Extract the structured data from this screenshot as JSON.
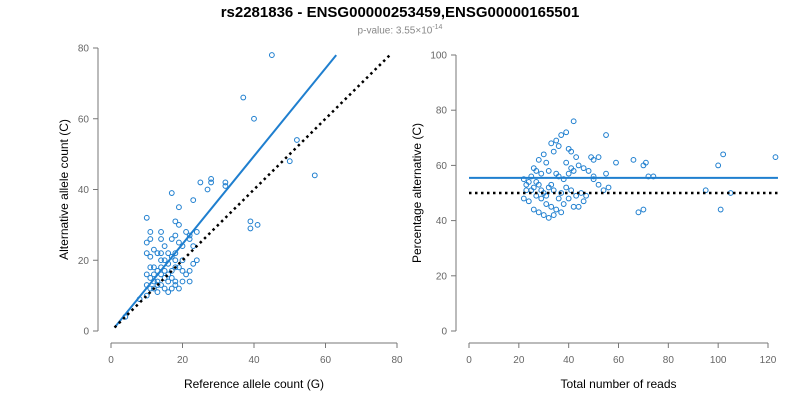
{
  "title": "rs2281836 - ENSG00000253459,ENSG00000165501",
  "subtitle": {
    "prefix": "p-value: 3.55×10",
    "exponent": "-14"
  },
  "colors": {
    "points": "#1f7fcf",
    "fit": "#1f7fcf",
    "reference": "#000000"
  },
  "chart_data": [
    {
      "type": "scatter",
      "xlabel": "Reference allele count (G)",
      "ylabel": "Alternative allele count (C)",
      "xlim": [
        0,
        80
      ],
      "ylim": [
        0,
        80
      ],
      "xticks": [
        0,
        20,
        40,
        60,
        80
      ],
      "yticks": [
        0,
        20,
        40,
        60,
        80
      ],
      "lines": [
        {
          "name": "fit",
          "style": "solid",
          "x": [
            1,
            63
          ],
          "y": [
            1,
            78
          ]
        },
        {
          "name": "y = x",
          "style": "dotted",
          "x": [
            1,
            78
          ],
          "y": [
            1,
            78
          ]
        }
      ],
      "points": [
        [
          45,
          78
        ],
        [
          37,
          66
        ],
        [
          40,
          60
        ],
        [
          52,
          54
        ],
        [
          57,
          44
        ],
        [
          50,
          48
        ],
        [
          41,
          30
        ],
        [
          39,
          29
        ],
        [
          39,
          31
        ],
        [
          32,
          42
        ],
        [
          32,
          41
        ],
        [
          28,
          43
        ],
        [
          28,
          42
        ],
        [
          27,
          40
        ],
        [
          25,
          42
        ],
        [
          23,
          37
        ],
        [
          17,
          39
        ],
        [
          10,
          32
        ],
        [
          11,
          28
        ],
        [
          10,
          25
        ],
        [
          11,
          26
        ],
        [
          14,
          28
        ],
        [
          14,
          26
        ],
        [
          19,
          35
        ],
        [
          18,
          31
        ],
        [
          19,
          30
        ],
        [
          18,
          27
        ],
        [
          17,
          26
        ],
        [
          19,
          25
        ],
        [
          20,
          24
        ],
        [
          22,
          27
        ],
        [
          21,
          28
        ],
        [
          22,
          26
        ],
        [
          23,
          24
        ],
        [
          24,
          28
        ],
        [
          10,
          22
        ],
        [
          12,
          23
        ],
        [
          11,
          21
        ],
        [
          13,
          22
        ],
        [
          14,
          22
        ],
        [
          14,
          20
        ],
        [
          15,
          20
        ],
        [
          16,
          22
        ],
        [
          16,
          19
        ],
        [
          17,
          21
        ],
        [
          18,
          20
        ],
        [
          18,
          18
        ],
        [
          19,
          18
        ],
        [
          20,
          17
        ],
        [
          21,
          16
        ],
        [
          22,
          17
        ],
        [
          23,
          19
        ],
        [
          24,
          20
        ],
        [
          22,
          14
        ],
        [
          20,
          14
        ],
        [
          11,
          18
        ],
        [
          12,
          18
        ],
        [
          13,
          17
        ],
        [
          14,
          16
        ],
        [
          15,
          15
        ],
        [
          15,
          17
        ],
        [
          16,
          16
        ],
        [
          17,
          15
        ],
        [
          17,
          17
        ],
        [
          18,
          14
        ],
        [
          10,
          16
        ],
        [
          11,
          15
        ],
        [
          12,
          14
        ],
        [
          13,
          13
        ],
        [
          14,
          13
        ],
        [
          15,
          12
        ],
        [
          12,
          12
        ],
        [
          10,
          13
        ],
        [
          11,
          12
        ],
        [
          13,
          11
        ],
        [
          16,
          11
        ],
        [
          17,
          12
        ],
        [
          18,
          13
        ],
        [
          19,
          12
        ],
        [
          10,
          10
        ],
        [
          13,
          14
        ],
        [
          14,
          18
        ],
        [
          16,
          14
        ],
        [
          20,
          20
        ],
        [
          18,
          22
        ],
        [
          15,
          24
        ],
        [
          12,
          16
        ],
        [
          4,
          4
        ],
        [
          8,
          9
        ]
      ]
    },
    {
      "type": "scatter",
      "xlabel": "Total number of reads",
      "ylabel": "Percentage alternative (C)",
      "xlim": [
        0,
        120
      ],
      "ylim": [
        0,
        100
      ],
      "xticks": [
        0,
        20,
        40,
        60,
        80,
        100,
        120
      ],
      "yticks": [
        0,
        20,
        40,
        60,
        80,
        100
      ],
      "lines": [
        {
          "name": "mean",
          "style": "solid",
          "x": [
            0,
            124
          ],
          "y": [
            55.5,
            55.5
          ]
        },
        {
          "name": "50%",
          "style": "dotted",
          "x": [
            0,
            124
          ],
          "y": [
            50,
            50
          ]
        }
      ],
      "points": [
        [
          123,
          63
        ],
        [
          102,
          64
        ],
        [
          100,
          60
        ],
        [
          101,
          44
        ],
        [
          105,
          50
        ],
        [
          95,
          51
        ],
        [
          74,
          56
        ],
        [
          72,
          56
        ],
        [
          70,
          60
        ],
        [
          71,
          61
        ],
        [
          70,
          44
        ],
        [
          68,
          43
        ],
        [
          66,
          62
        ],
        [
          59,
          61
        ],
        [
          55,
          71
        ],
        [
          52,
          63
        ],
        [
          50,
          62
        ],
        [
          49,
          63
        ],
        [
          42,
          76
        ],
        [
          41,
          65
        ],
        [
          40,
          66
        ],
        [
          43,
          63
        ],
        [
          39,
          72
        ],
        [
          37,
          71
        ],
        [
          35,
          69
        ],
        [
          36,
          67
        ],
        [
          34,
          65
        ],
        [
          33,
          68
        ],
        [
          30,
          64
        ],
        [
          31,
          61
        ],
        [
          28,
          62
        ],
        [
          27,
          58
        ],
        [
          26,
          59
        ],
        [
          29,
          57
        ],
        [
          32,
          58
        ],
        [
          35,
          57
        ],
        [
          36,
          56
        ],
        [
          38,
          55
        ],
        [
          40,
          57
        ],
        [
          42,
          58
        ],
        [
          44,
          60
        ],
        [
          46,
          59
        ],
        [
          48,
          58
        ],
        [
          50,
          56
        ],
        [
          52,
          53
        ],
        [
          54,
          51
        ],
        [
          56,
          52
        ],
        [
          45,
          50
        ],
        [
          47,
          49
        ],
        [
          43,
          49
        ],
        [
          41,
          51
        ],
        [
          39,
          52
        ],
        [
          37,
          50
        ],
        [
          34,
          51
        ],
        [
          32,
          52
        ],
        [
          30,
          50
        ],
        [
          28,
          53
        ],
        [
          26,
          52
        ],
        [
          24,
          54
        ],
        [
          22,
          55
        ],
        [
          23,
          53
        ],
        [
          25,
          51
        ],
        [
          27,
          49
        ],
        [
          29,
          48
        ],
        [
          31,
          46
        ],
        [
          33,
          45
        ],
        [
          35,
          44
        ],
        [
          37,
          43
        ],
        [
          30,
          42
        ],
        [
          28,
          43
        ],
        [
          32,
          41
        ],
        [
          34,
          42
        ],
        [
          26,
          44
        ],
        [
          24,
          47
        ],
        [
          22,
          48
        ],
        [
          38,
          46
        ],
        [
          40,
          48
        ],
        [
          42,
          45
        ],
        [
          44,
          45
        ],
        [
          46,
          47
        ],
        [
          36,
          48
        ],
        [
          31,
          49
        ],
        [
          29,
          51
        ],
        [
          27,
          54
        ],
        [
          25,
          56
        ],
        [
          23,
          51
        ],
        [
          33,
          53
        ],
        [
          39,
          61
        ],
        [
          41,
          59
        ],
        [
          50,
          55
        ],
        [
          55,
          57
        ]
      ]
    }
  ]
}
